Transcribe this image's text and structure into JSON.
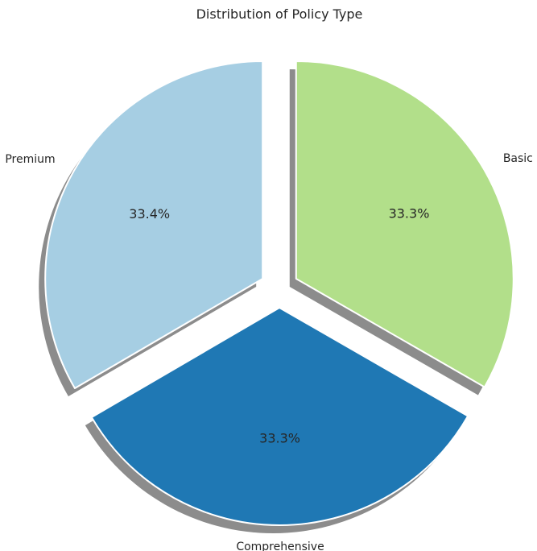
{
  "chart_data": {
    "type": "pie",
    "title": "Distribution of Policy Type",
    "slices": [
      {
        "label": "Premium",
        "value": 33.4,
        "pct_label": "33.4%",
        "color": "#a6cee3"
      },
      {
        "label": "Comprehensive",
        "value": 33.3,
        "pct_label": "33.3%",
        "color": "#1f78b4"
      },
      {
        "label": "Basic",
        "value": 33.3,
        "pct_label": "33.3%",
        "color": "#b2df8a"
      }
    ],
    "start_angle_deg": 90,
    "direction": "counterclockwise",
    "explode": true,
    "shadow": true,
    "legend": "none"
  }
}
